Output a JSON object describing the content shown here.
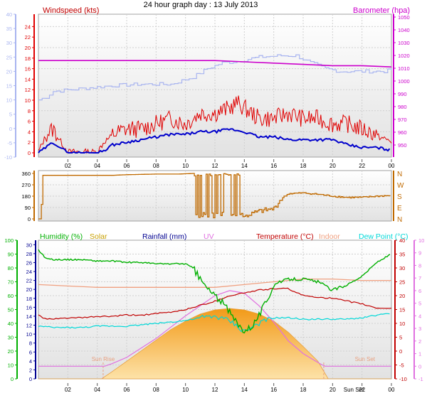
{
  "title": "24 hour graph day : 13 July 2013",
  "colors": {
    "wind": "#e00000",
    "gust_dark": "#0000cc",
    "baro": "#cc00cc",
    "wind_light": "#a8b4f0",
    "direction": "#c06a00",
    "humidity": "#00b000",
    "solar": "#f5a020",
    "rainfall": "#000090",
    "uv": "#e070e0",
    "temperature": "#c00000",
    "indoor": "#f0a080",
    "dewpoint": "#00d8d8"
  },
  "x_ticks": [
    "02",
    "04",
    "06",
    "08",
    "10",
    "12",
    "14",
    "16",
    "18",
    "20",
    "22",
    "00"
  ],
  "chart_data": [
    {
      "type": "line",
      "title": "",
      "x_ticks": [
        "02",
        "04",
        "06",
        "08",
        "10",
        "12",
        "14",
        "16",
        "18",
        "20",
        "22",
        "00"
      ],
      "left_axis": {
        "label": "Windspeed (kts)",
        "ticks": [
          0,
          2,
          4,
          6,
          8,
          10,
          12,
          14,
          16,
          18,
          20,
          22,
          24
        ],
        "ylim": [
          0,
          25
        ]
      },
      "outer_left_axis": {
        "ticks": [
          -10,
          -5,
          0,
          5,
          10,
          15,
          20,
          25,
          30,
          35,
          40
        ],
        "ylim": [
          -10,
          40
        ]
      },
      "right_axis": {
        "label": "Barometer (hpa)",
        "ticks": [
          950,
          960,
          970,
          980,
          990,
          1000,
          1010,
          1020,
          1030,
          1040,
          1050
        ],
        "ylim": [
          945,
          1050
        ]
      },
      "series": [
        {
          "axis": "baro",
          "x": [
            0,
            4,
            8,
            12,
            14,
            16,
            18,
            20,
            22,
            24
          ],
          "values": [
            1016,
            1016,
            1016,
            1016,
            1015,
            1014,
            1013,
            1012,
            1012,
            1011
          ]
        },
        {
          "axis": "outer",
          "x": [
            0,
            0.5,
            1,
            3,
            5,
            7,
            9,
            10.5,
            11.5,
            12.5,
            13.5,
            15,
            16.5,
            17.5,
            18.5,
            19.5,
            20.5,
            21.5,
            22.5,
            23.5,
            24
          ],
          "values": [
            10,
            11,
            13,
            14,
            15,
            15.5,
            15.5,
            18,
            21,
            23,
            23.5,
            25,
            25.5,
            25.5,
            23,
            21,
            20,
            20,
            20,
            20,
            20.5
          ]
        },
        {
          "axis": "wind",
          "x": [
            0,
            0.5,
            1,
            1.5,
            2,
            3,
            4,
            4.5,
            5,
            6,
            7,
            8,
            9,
            10,
            11,
            12,
            13,
            13.5,
            14,
            15,
            16,
            17,
            18,
            19,
            20,
            21,
            22,
            23,
            24
          ],
          "values": [
            0,
            3,
            4,
            2,
            0,
            0,
            0,
            2,
            3,
            4,
            4,
            5,
            6,
            5,
            7,
            7,
            8,
            9,
            8,
            6,
            6,
            7,
            6,
            6,
            5,
            5,
            4,
            3,
            2
          ]
        },
        {
          "axis": "wind",
          "x": [
            0,
            0.5,
            1,
            1.5,
            2,
            3,
            4,
            4.5,
            5,
            6,
            7,
            8,
            9,
            10,
            11,
            12,
            13,
            14,
            15,
            16,
            17,
            18,
            19,
            20,
            21,
            22,
            23,
            24
          ],
          "values": [
            0,
            1,
            2,
            1,
            0,
            0,
            0,
            0.5,
            1.5,
            2,
            2.5,
            3,
            3.5,
            3.5,
            4,
            4,
            4.5,
            4,
            3,
            3,
            2.5,
            2.5,
            2.5,
            2.5,
            1.5,
            1,
            1,
            0.5
          ]
        }
      ]
    },
    {
      "type": "line",
      "title": "",
      "x_ticks": [
        "02",
        "04",
        "06",
        "08",
        "10",
        "12",
        "14",
        "16",
        "18",
        "20",
        "22",
        "00"
      ],
      "left_axis": {
        "ticks": [
          0,
          90,
          180,
          270,
          360
        ],
        "ylim": [
          0,
          360
        ]
      },
      "right_axis": {
        "ticks": [
          "N",
          "W",
          "S",
          "E",
          "N"
        ]
      },
      "series": [
        {
          "name": "",
          "x": [
            0,
            0.15,
            0.3,
            1,
            3,
            5,
            6,
            8,
            9.5,
            10.5,
            11,
            12,
            13,
            13.5,
            14,
            14.5,
            15,
            16,
            16.5,
            17,
            18,
            19,
            20,
            21,
            22,
            23,
            24
          ],
          "values": [
            0,
            0,
            345,
            345,
            345,
            345,
            350,
            355,
            355,
            360,
            360,
            360,
            360,
            10,
            20,
            40,
            60,
            80,
            160,
            200,
            205,
            195,
            180,
            170,
            170,
            180,
            185
          ]
        }
      ]
    },
    {
      "type": "line",
      "title": "",
      "x_ticks": [
        "02",
        "04",
        "06",
        "08",
        "10",
        "12",
        "14",
        "16",
        "18",
        "20",
        "22",
        "00"
      ],
      "legend": [
        "Humidity (%)",
        "Solar",
        "Rainfall (mm)",
        "UV",
        "Temperature (°C)",
        "Indoor",
        "Dew Point (°C)"
      ],
      "annotations": [
        "Sun Rise",
        "Sun Set",
        "Sun Set"
      ],
      "humidity_axis": {
        "ticks": [
          0,
          10,
          20,
          30,
          40,
          50,
          60,
          70,
          80,
          90,
          100
        ],
        "ylim": [
          0,
          100
        ]
      },
      "rainfall_axis": {
        "ticks": [
          0,
          2,
          4,
          6,
          8,
          10,
          12,
          14,
          16,
          18,
          20,
          22,
          24,
          26,
          28,
          30
        ],
        "ylim": [
          0,
          31
        ]
      },
      "temperature_axis": {
        "ticks": [
          -10,
          -5,
          0,
          5,
          10,
          15,
          20,
          25,
          30,
          35,
          40
        ],
        "ylim": [
          -10,
          40
        ]
      },
      "uv_axis": {
        "ticks": [
          -1,
          0,
          1,
          2,
          3,
          4,
          5,
          6,
          7,
          8,
          9,
          10
        ],
        "ylim": [
          -1,
          10
        ]
      },
      "series": [
        {
          "axis": "humidity",
          "x": [
            0,
            0.5,
            1,
            2,
            3,
            4,
            5,
            6,
            7,
            8,
            9,
            10,
            10.5,
            11,
            11.5,
            12,
            12.5,
            13,
            13.5,
            14,
            14.5,
            15,
            15.5,
            16,
            17,
            18,
            19,
            20,
            21,
            22,
            23,
            24
          ],
          "values": [
            93,
            87,
            86,
            86,
            86,
            85,
            85,
            84,
            84,
            83,
            83,
            83,
            80,
            72,
            65,
            60,
            55,
            48,
            40,
            35,
            38,
            46,
            56,
            68,
            72,
            72,
            70,
            64,
            68,
            74,
            84,
            90
          ]
        },
        {
          "axis": "temperature",
          "x": [
            0,
            0.5,
            1,
            2,
            3,
            4,
            5,
            6,
            7,
            8,
            9,
            10,
            11,
            12,
            13,
            14,
            15,
            16,
            17,
            18,
            19,
            20,
            21,
            22,
            23,
            24
          ],
          "values": [
            13,
            11.5,
            11.5,
            12,
            12,
            12.5,
            12.5,
            13,
            13,
            13.5,
            14,
            15,
            16.5,
            18,
            20,
            21,
            22,
            22.5,
            22.5,
            20,
            19.5,
            19,
            18,
            17,
            15.5,
            15.5
          ]
        },
        {
          "axis": "temperature",
          "x": [
            0,
            2,
            4,
            6,
            8,
            10,
            12,
            14,
            16,
            18,
            20,
            22,
            24
          ],
          "values": [
            24,
            23.5,
            23,
            23,
            23,
            23,
            23,
            24,
            25,
            26,
            26,
            25.5,
            25.5
          ]
        },
        {
          "axis": "temperature",
          "x": [
            0,
            1,
            2,
            3,
            4,
            5,
            6,
            7,
            8,
            9,
            10,
            11,
            12,
            13,
            14,
            15,
            16,
            17,
            18,
            19,
            20,
            21,
            22,
            23,
            24
          ],
          "values": [
            9,
            8.5,
            8.5,
            8.5,
            9,
            9,
            9,
            9.5,
            10,
            10.5,
            11,
            12,
            12.5,
            11,
            7,
            10,
            12,
            12,
            11.5,
            11.5,
            11.5,
            11.5,
            12,
            13,
            13.5
          ]
        },
        {
          "axis": "uv",
          "x": [
            0,
            4.5,
            5,
            6,
            8,
            10,
            12,
            13,
            14,
            15,
            16,
            17,
            18,
            19,
            19.3,
            19.5,
            24
          ],
          "values": [
            0,
            0,
            0.2,
            0.7,
            2.2,
            4,
            5.6,
            6,
            5.8,
            4.8,
            3.5,
            2,
            1,
            0.3,
            0.1,
            0,
            0
          ]
        },
        {
          "axis": "solar",
          "x": [
            0,
            4.3,
            5,
            6,
            7,
            8,
            9,
            10,
            11,
            12,
            13,
            14,
            15,
            16,
            17,
            18,
            19,
            19.7,
            24
          ],
          "values": [
            0,
            0,
            0.1,
            0.25,
            0.4,
            0.55,
            0.7,
            0.82,
            0.92,
            0.98,
            1,
            0.98,
            0.92,
            0.82,
            0.66,
            0.46,
            0.25,
            0,
            0
          ]
        }
      ]
    }
  ]
}
